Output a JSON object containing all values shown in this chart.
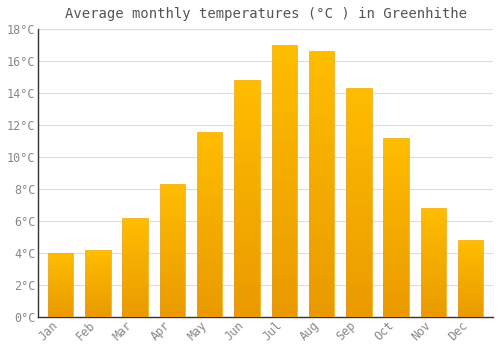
{
  "title": "Average monthly temperatures (°C ) in Greenhithe",
  "months": [
    "Jan",
    "Feb",
    "Mar",
    "Apr",
    "May",
    "Jun",
    "Jul",
    "Aug",
    "Sep",
    "Oct",
    "Nov",
    "Dec"
  ],
  "values": [
    4.0,
    4.2,
    6.2,
    8.3,
    11.6,
    14.8,
    17.0,
    16.6,
    14.3,
    11.2,
    6.8,
    4.8
  ],
  "bar_color_top": "#FFBE00",
  "bar_color_bottom": "#FFA500",
  "bar_edge_color": "#E8A000",
  "background_color": "#FFFFFF",
  "grid_color": "#DDDDDD",
  "text_color": "#888888",
  "spine_color": "#333333",
  "ylim": [
    0,
    18
  ],
  "yticks": [
    0,
    2,
    4,
    6,
    8,
    10,
    12,
    14,
    16,
    18
  ],
  "title_fontsize": 10,
  "tick_fontsize": 8.5
}
